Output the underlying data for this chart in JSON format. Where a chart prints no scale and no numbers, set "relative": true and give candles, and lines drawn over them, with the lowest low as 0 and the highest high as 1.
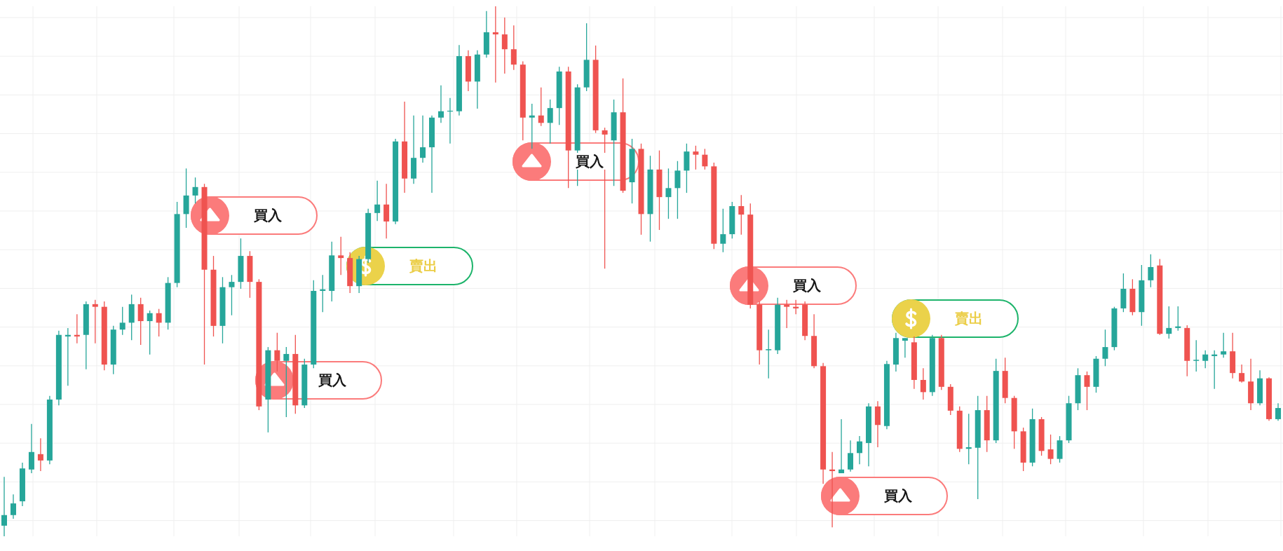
{
  "chart_data": {
    "type": "candlestick",
    "relative": true,
    "grid": true,
    "tick_labels": false,
    "categories": [
      null,
      null,
      null,
      null,
      null,
      null,
      null,
      null,
      null,
      null,
      null,
      null,
      null,
      null,
      null,
      null,
      null,
      null,
      null,
      null,
      null,
      null,
      null,
      null,
      null,
      null,
      null,
      null,
      null,
      null,
      null,
      null,
      null,
      null,
      null,
      null,
      null,
      null,
      null,
      null,
      null,
      null,
      null,
      null,
      null,
      null,
      null,
      null,
      null,
      null,
      null,
      null,
      null,
      null,
      null,
      null,
      null,
      null,
      null,
      null,
      null,
      null,
      null,
      null,
      null,
      null,
      null,
      null,
      null,
      null,
      null,
      null,
      null,
      null,
      null,
      null,
      null,
      null,
      null,
      null,
      null,
      null,
      null,
      null,
      null,
      null,
      null,
      null,
      null,
      null,
      null,
      null,
      null,
      null,
      null,
      null,
      null,
      null,
      null,
      null,
      null,
      null,
      null,
      null,
      null,
      null,
      null,
      null,
      null,
      null,
      null,
      null,
      null,
      null,
      null,
      null,
      null,
      null,
      null,
      null,
      null,
      null,
      null,
      null,
      null,
      null,
      null,
      null,
      null,
      null,
      null,
      null,
      null,
      null,
      null,
      null,
      null,
      null,
      null,
      null,
      null
    ],
    "ohlc": [
      [
        0.02,
        0.112,
        0,
        0.04
      ],
      [
        0.04,
        0.079,
        0.033,
        0.062
      ],
      [
        0.066,
        0.139,
        0.057,
        0.128
      ],
      [
        0.126,
        0.212,
        0.119,
        0.159
      ],
      [
        0.155,
        0.185,
        0.123,
        0.143
      ],
      [
        0.143,
        0.265,
        0.136,
        0.258
      ],
      [
        0.258,
        0.388,
        0.247,
        0.38
      ],
      [
        0.377,
        0.393,
        0.284,
        0.38
      ],
      [
        0.38,
        0.419,
        0.364,
        0.377
      ],
      [
        0.38,
        0.443,
        0.315,
        0.438
      ],
      [
        0.438,
        0.446,
        0.364,
        0.433
      ],
      [
        0.433,
        0.443,
        0.313,
        0.324
      ],
      [
        0.324,
        0.397,
        0.306,
        0.39
      ],
      [
        0.39,
        0.433,
        0.38,
        0.403
      ],
      [
        0.403,
        0.456,
        0.37,
        0.438
      ],
      [
        0.438,
        0.45,
        0.361,
        0.406
      ],
      [
        0.406,
        0.426,
        0.343,
        0.421
      ],
      [
        0.421,
        0.429,
        0.377,
        0.403
      ],
      [
        0.403,
        0.489,
        0.39,
        0.478
      ],
      [
        0.478,
        0.631,
        0.47,
        0.608
      ],
      [
        0.608,
        0.694,
        0.582,
        0.643
      ],
      [
        0.643,
        0.677,
        0.628,
        0.659
      ],
      [
        0.659,
        0.665,
        0.324,
        0.503
      ],
      [
        0.503,
        0.529,
        0.377,
        0.397
      ],
      [
        0.397,
        0.489,
        0.364,
        0.47
      ],
      [
        0.47,
        0.493,
        0.417,
        0.48
      ],
      [
        0.48,
        0.562,
        0.467,
        0.529
      ],
      [
        0.529,
        0.538,
        0.45,
        0.48
      ],
      [
        0.48,
        0.485,
        0.238,
        0.245
      ],
      [
        0.258,
        0.357,
        0.196,
        0.351
      ],
      [
        0.351,
        0.384,
        0.311,
        0.331
      ],
      [
        0.331,
        0.357,
        0.225,
        0.344
      ],
      [
        0.344,
        0.38,
        0.231,
        0.247
      ],
      [
        0.247,
        0.335,
        0.242,
        0.324
      ],
      [
        0.324,
        0.483,
        0.317,
        0.463
      ],
      [
        0.463,
        0.493,
        0.423,
        0.466
      ],
      [
        0.463,
        0.556,
        0.443,
        0.53
      ],
      [
        0.53,
        0.565,
        0.493,
        0.525
      ],
      [
        0.525,
        0.536,
        0.459,
        0.472
      ],
      [
        0.472,
        0.529,
        0.459,
        0.523
      ],
      [
        0.523,
        0.618,
        0.516,
        0.61
      ],
      [
        0.61,
        0.671,
        0.595,
        0.626
      ],
      [
        0.626,
        0.665,
        0.562,
        0.594
      ],
      [
        0.594,
        0.75,
        0.589,
        0.745
      ],
      [
        0.745,
        0.82,
        0.648,
        0.675
      ],
      [
        0.675,
        0.794,
        0.665,
        0.714
      ],
      [
        0.714,
        0.794,
        0.705,
        0.734
      ],
      [
        0.734,
        0.794,
        0.648,
        0.79
      ],
      [
        0.79,
        0.851,
        0.78,
        0.802
      ],
      [
        0.802,
        0.827,
        0.741,
        0.803
      ],
      [
        0.802,
        0.927,
        0.794,
        0.906
      ],
      [
        0.906,
        0.917,
        0.84,
        0.858
      ],
      [
        0.858,
        0.917,
        0.807,
        0.909
      ],
      [
        0.909,
        0.991,
        0.903,
        0.951
      ],
      [
        0.951,
        1,
        0.856,
        0.947
      ],
      [
        0.947,
        0.979,
        0.873,
        0.919
      ],
      [
        0.919,
        0.964,
        0.88,
        0.89
      ],
      [
        0.89,
        0.896,
        0.747,
        0.79
      ],
      [
        0.79,
        0.816,
        0.731,
        0.794
      ],
      [
        0.794,
        0.847,
        0.774,
        0.78
      ],
      [
        0.78,
        0.824,
        0.741,
        0.808
      ],
      [
        0.808,
        0.886,
        0.776,
        0.877
      ],
      [
        0.877,
        0.886,
        0.657,
        0.728
      ],
      [
        0.728,
        0.853,
        0.661,
        0.847
      ],
      [
        0.847,
        0.968,
        0.84,
        0.899
      ],
      [
        0.899,
        0.926,
        0.761,
        0.766
      ],
      [
        0.766,
        0.771,
        0.505,
        0.758
      ],
      [
        0.747,
        0.824,
        0.661,
        0.8
      ],
      [
        0.8,
        0.864,
        0.648,
        0.652
      ],
      [
        0.668,
        0.75,
        0.628,
        0.731
      ],
      [
        0.731,
        0.741,
        0.569,
        0.608
      ],
      [
        0.608,
        0.718,
        0.556,
        0.692
      ],
      [
        0.692,
        0.728,
        0.578,
        0.64
      ],
      [
        0.64,
        0.694,
        0.599,
        0.657
      ],
      [
        0.657,
        0.708,
        0.599,
        0.69
      ],
      [
        0.69,
        0.741,
        0.648,
        0.726
      ],
      [
        0.726,
        0.737,
        0.692,
        0.72
      ],
      [
        0.72,
        0.731,
        0.692,
        0.698
      ],
      [
        0.698,
        0.705,
        0.542,
        0.552
      ],
      [
        0.552,
        0.618,
        0.536,
        0.57
      ],
      [
        0.57,
        0.631,
        0.562,
        0.623
      ],
      [
        0.623,
        0.644,
        0.569,
        0.607
      ],
      [
        0.607,
        0.628,
        0.43,
        0.437
      ],
      [
        0.437,
        0.443,
        0.324,
        0.351
      ],
      [
        0.351,
        0.39,
        0.298,
        0.353
      ],
      [
        0.351,
        0.45,
        0.344,
        0.437
      ],
      [
        0.437,
        0.446,
        0.393,
        0.433
      ],
      [
        0.433,
        0.446,
        0.419,
        0.43
      ],
      [
        0.437,
        0.443,
        0.37,
        0.378
      ],
      [
        0.378,
        0.419,
        0.317,
        0.321
      ],
      [
        0.321,
        0.327,
        0.099,
        0.126
      ],
      [
        0.126,
        0.159,
        0.017,
        0.123
      ],
      [
        0.119,
        0.221,
        0.119,
        0.126
      ],
      [
        0.126,
        0.181,
        0.122,
        0.157
      ],
      [
        0.157,
        0.189,
        0.136,
        0.179
      ],
      [
        0.176,
        0.251,
        0.132,
        0.245
      ],
      [
        0.245,
        0.255,
        0.168,
        0.21
      ],
      [
        0.208,
        0.331,
        0.202,
        0.325
      ],
      [
        0.324,
        0.384,
        0.311,
        0.374
      ],
      [
        0.369,
        0.374,
        0.337,
        0.374
      ],
      [
        0.366,
        0.377,
        0.278,
        0.295
      ],
      [
        0.295,
        0.317,
        0.258,
        0.272
      ],
      [
        0.272,
        0.38,
        0.265,
        0.374
      ],
      [
        0.374,
        0.38,
        0.276,
        0.282
      ],
      [
        0.282,
        0.287,
        0.229,
        0.237
      ],
      [
        0.237,
        0.245,
        0.159,
        0.165
      ],
      [
        0.165,
        0.231,
        0.136,
        0.168
      ],
      [
        0.167,
        0.265,
        0.07,
        0.238
      ],
      [
        0.238,
        0.265,
        0.159,
        0.181
      ],
      [
        0.181,
        0.335,
        0.176,
        0.312
      ],
      [
        0.312,
        0.337,
        0.251,
        0.261
      ],
      [
        0.261,
        0.265,
        0.165,
        0.198
      ],
      [
        0.198,
        0.205,
        0.123,
        0.139
      ],
      [
        0.139,
        0.241,
        0.132,
        0.221
      ],
      [
        0.221,
        0.225,
        0.152,
        0.161
      ],
      [
        0.164,
        0.192,
        0.136,
        0.146
      ],
      [
        0.146,
        0.189,
        0.139,
        0.181
      ],
      [
        0.181,
        0.265,
        0.176,
        0.251
      ],
      [
        0.251,
        0.317,
        0.238,
        0.304
      ],
      [
        0.304,
        0.311,
        0.238,
        0.282
      ],
      [
        0.282,
        0.34,
        0.271,
        0.335
      ],
      [
        0.335,
        0.39,
        0.321,
        0.357
      ],
      [
        0.357,
        0.433,
        0.351,
        0.43
      ],
      [
        0.43,
        0.496,
        0.423,
        0.467
      ],
      [
        0.467,
        0.485,
        0.417,
        0.423
      ],
      [
        0.423,
        0.512,
        0.397,
        0.483
      ],
      [
        0.483,
        0.532,
        0.47,
        0.508
      ],
      [
        0.511,
        0.523,
        0.38,
        0.382
      ],
      [
        0.382,
        0.434,
        0.373,
        0.393
      ],
      [
        0.393,
        0.434,
        0.388,
        0.396
      ],
      [
        0.393,
        0.398,
        0.302,
        0.331
      ],
      [
        0.331,
        0.37,
        0.311,
        0.333
      ],
      [
        0.331,
        0.351,
        0.317,
        0.343
      ],
      [
        0.34,
        0.351,
        0.278,
        0.343
      ],
      [
        0.343,
        0.384,
        0.337,
        0.349
      ],
      [
        0.349,
        0.384,
        0.298,
        0.308
      ],
      [
        0.308,
        0.324,
        0.29,
        0.292
      ],
      [
        0.292,
        0.335,
        0.238,
        0.251
      ],
      [
        0.251,
        0.313,
        0.247,
        0.298
      ],
      [
        0.298,
        0.3,
        0.218,
        0.221
      ],
      [
        0.221,
        0.251,
        0.218,
        0.242
      ]
    ],
    "colors": [
      "#26a69a",
      "#26a69a",
      "#26a69a",
      "#26a69a",
      "#ef5350",
      "#26a69a",
      "#26a69a",
      "#26a69a",
      "#ef5350",
      "#26a69a",
      "#ef5350",
      "#ef5350",
      "#26a69a",
      "#26a69a",
      "#26a69a",
      "#ef5350",
      "#26a69a",
      "#ef5350",
      "#26a69a",
      "#26a69a",
      "#26a69a",
      "#26a69a",
      "#ef5350",
      "#ef5350",
      "#26a69a",
      "#26a69a",
      "#26a69a",
      "#ef5350",
      "#ef5350",
      "#26a69a",
      "#ef5350",
      "#26a69a",
      "#ef5350",
      "#26a69a",
      "#26a69a",
      "#26a69a",
      "#26a69a",
      "#ef5350",
      "#ef5350",
      "#26a69a",
      "#26a69a",
      "#26a69a",
      "#ef5350",
      "#26a69a",
      "#ef5350",
      "#26a69a",
      "#26a69a",
      "#26a69a",
      "#26a69a",
      "#26a69a",
      "#26a69a",
      "#ef5350",
      "#26a69a",
      "#26a69a",
      "#ef5350",
      "#ef5350",
      "#ef5350",
      "#ef5350",
      "#26a69a",
      "#ef5350",
      "#26a69a",
      "#26a69a",
      "#ef5350",
      "#26a69a",
      "#26a69a",
      "#ef5350",
      "#ef5350",
      "#26a69a",
      "#ef5350",
      "#26a69a",
      "#ef5350",
      "#26a69a",
      "#ef5350",
      "#26a69a",
      "#26a69a",
      "#26a69a",
      "#ef5350",
      "#ef5350",
      "#ef5350",
      "#26a69a",
      "#26a69a",
      "#ef5350",
      "#ef5350",
      "#ef5350",
      "#26a69a",
      "#26a69a",
      "#ef5350",
      "#ef5350",
      "#ef5350",
      "#ef5350",
      "#ef5350",
      "#ef5350",
      "#26a69a",
      "#26a69a",
      "#26a69a",
      "#26a69a",
      "#ef5350",
      "#26a69a",
      "#26a69a",
      "#26a69a",
      "#ef5350",
      "#ef5350",
      "#26a69a",
      "#ef5350",
      "#ef5350",
      "#ef5350",
      "#26a69a",
      "#26a69a",
      "#ef5350",
      "#26a69a",
      "#ef5350",
      "#ef5350",
      "#ef5350",
      "#26a69a",
      "#ef5350",
      "#ef5350",
      "#26a69a",
      "#26a69a",
      "#26a69a",
      "#ef5350",
      "#26a69a",
      "#26a69a",
      "#26a69a",
      "#26a69a",
      "#ef5350",
      "#26a69a",
      "#26a69a",
      "#ef5350",
      "#26a69a",
      "#26a69a",
      "#ef5350",
      "#26a69a",
      "#26a69a",
      "#26a69a",
      "#26a69a",
      "#ef5350",
      "#ef5350",
      "#ef5350",
      "#26a69a",
      "#ef5350",
      "#26a69a"
    ],
    "annotations": [
      "買入",
      "買入",
      "賣出",
      "買入",
      "買入",
      "買入",
      "賣出"
    ]
  }
}
